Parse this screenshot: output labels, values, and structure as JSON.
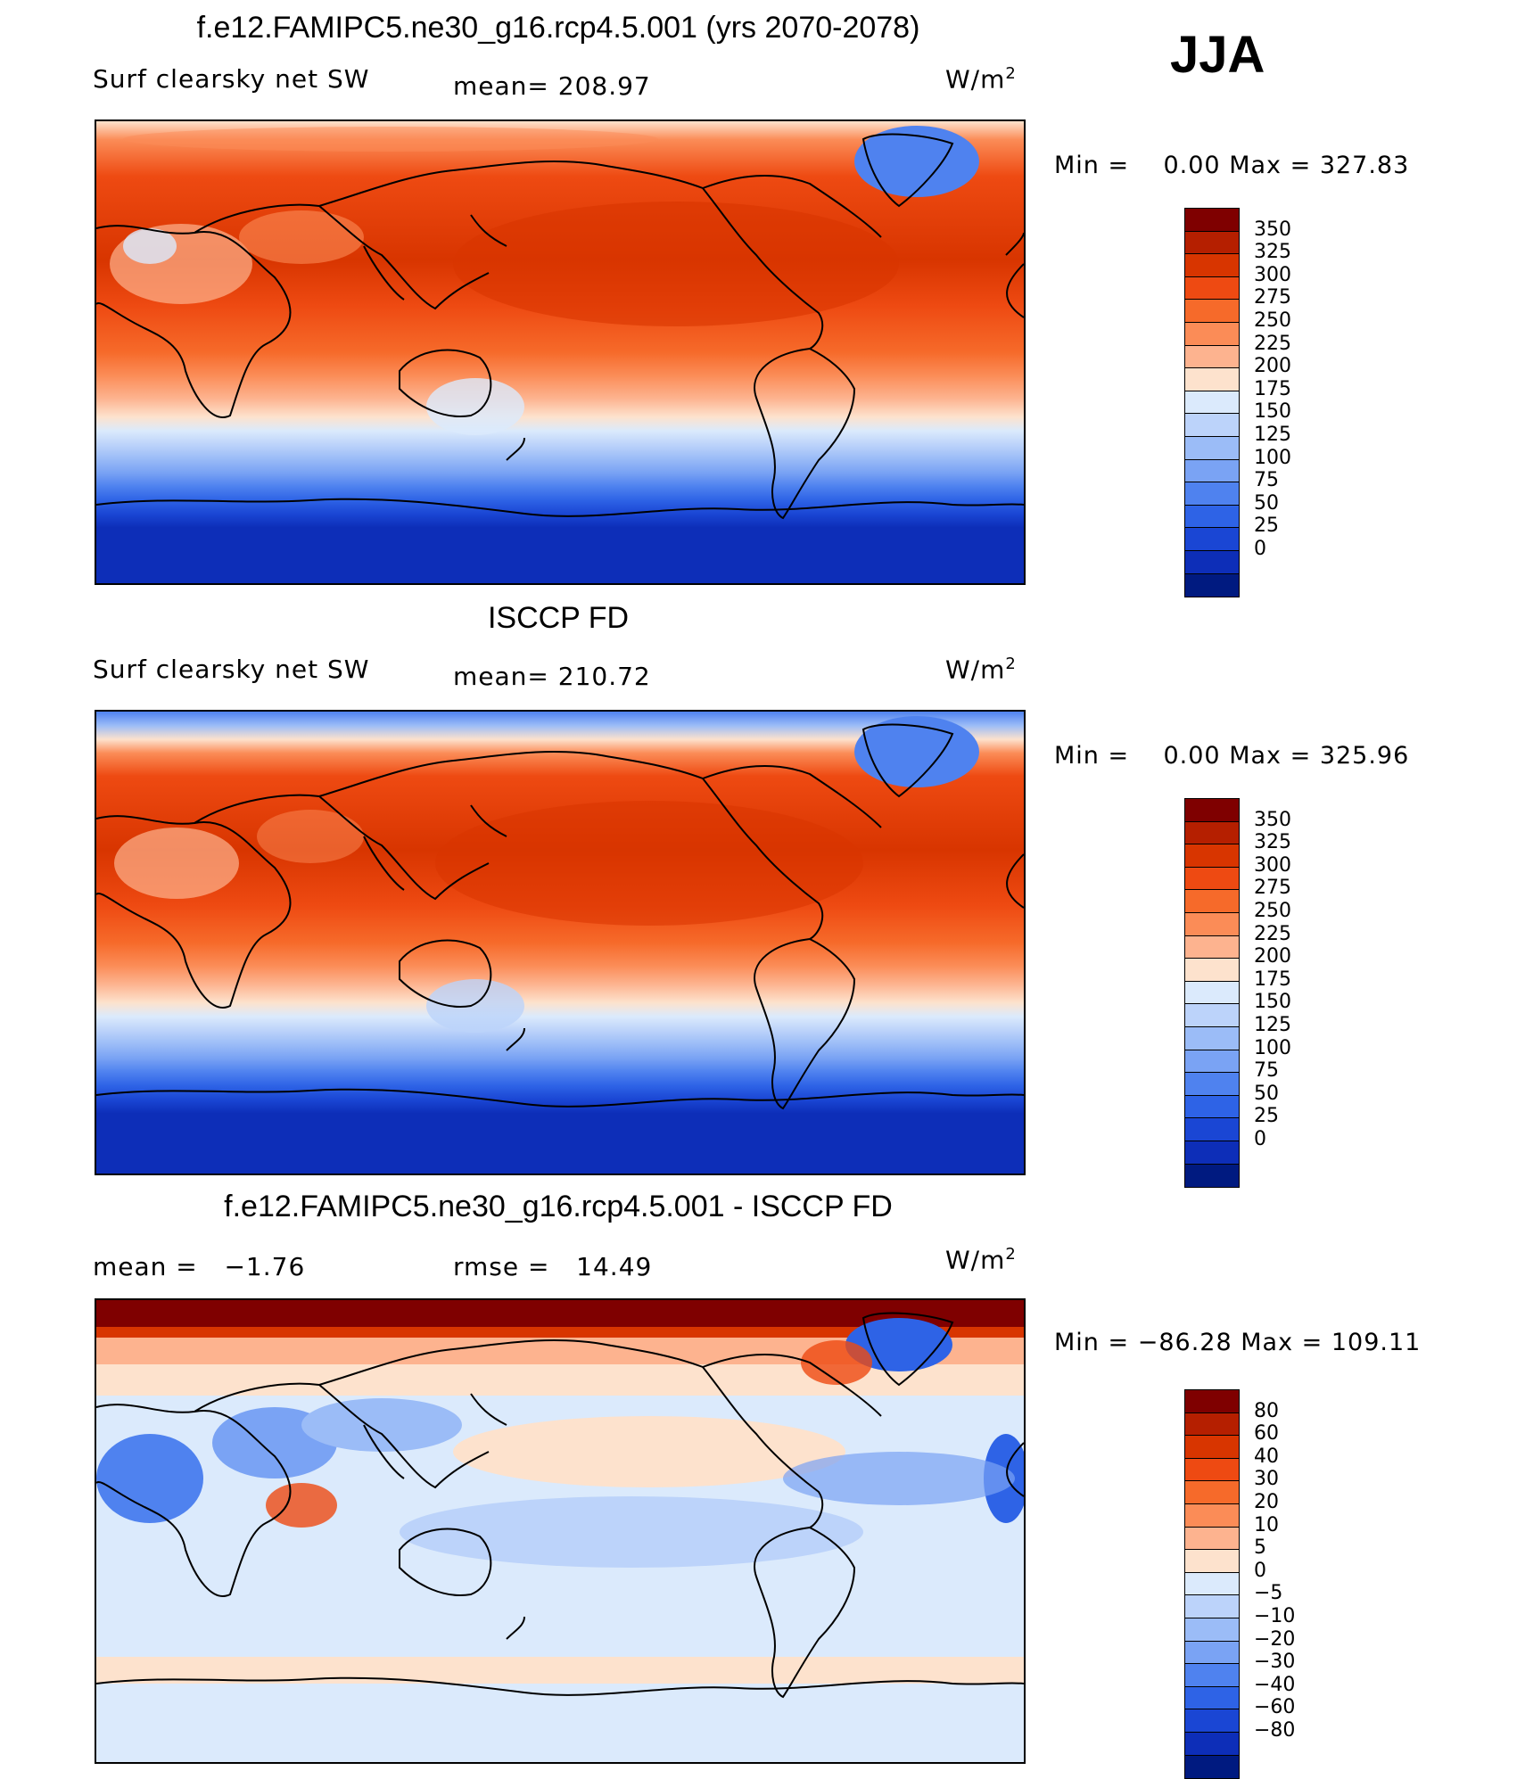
{
  "season": "JJA",
  "panels": [
    {
      "title": "f.e12.FAMIPC5.ne30_g16.rcp4.5.001 (yrs 2070-2078)",
      "variable": "Surf clearsky net SW",
      "stat1": "mean= 208.97",
      "stat2": "",
      "units": "W/m",
      "units_sup": "2",
      "minmax": {
        "min_label": "Min =",
        "min": "0.00",
        "max_label": "Max =",
        "max": "327.83"
      },
      "colorbar": {
        "labels": [
          "350",
          "325",
          "300",
          "275",
          "250",
          "225",
          "200",
          "175",
          "150",
          "125",
          "100",
          "75",
          "50",
          "25",
          "0"
        ],
        "colors": [
          "#7f0000",
          "#b51f00",
          "#d83500",
          "#ee4a12",
          "#f66a2a",
          "#fb8c57",
          "#fdb38f",
          "#fde2cd",
          "#dbeafc",
          "#bcd3fa",
          "#9bbcf7",
          "#7aa3f4",
          "#4f82ef",
          "#2e63e6",
          "#1a46d4",
          "#0d2eb8",
          "#001a80"
        ]
      }
    },
    {
      "title": "ISCCP FD",
      "variable": "Surf clearsky net SW",
      "stat1": "mean= 210.72",
      "stat2": "",
      "units": "W/m",
      "units_sup": "2",
      "minmax": {
        "min_label": "Min =",
        "min": "0.00",
        "max_label": "Max =",
        "max": "325.96"
      },
      "colorbar": {
        "labels": [
          "350",
          "325",
          "300",
          "275",
          "250",
          "225",
          "200",
          "175",
          "150",
          "125",
          "100",
          "75",
          "50",
          "25",
          "0"
        ],
        "colors": [
          "#7f0000",
          "#b51f00",
          "#d83500",
          "#ee4a12",
          "#f66a2a",
          "#fb8c57",
          "#fdb38f",
          "#fde2cd",
          "#dbeafc",
          "#bcd3fa",
          "#9bbcf7",
          "#7aa3f4",
          "#4f82ef",
          "#2e63e6",
          "#1a46d4",
          "#0d2eb8",
          "#001a80"
        ]
      }
    },
    {
      "title": "f.e12.FAMIPC5.ne30_g16.rcp4.5.001 - ISCCP FD",
      "variable": "mean =   −1.76",
      "stat1": "rmse =   14.49",
      "stat2": "",
      "units": "W/m",
      "units_sup": "2",
      "minmax": {
        "min_label": "Min =",
        "min": "−86.28",
        "max_label": "Max =",
        "max": "109.11"
      },
      "colorbar": {
        "labels": [
          "80",
          "60",
          "40",
          "30",
          "20",
          "10",
          "5",
          "0",
          "−5",
          "−10",
          "−20",
          "−30",
          "−40",
          "−60",
          "−80"
        ],
        "colors": [
          "#7f0000",
          "#b51f00",
          "#d83500",
          "#ee4a12",
          "#f66a2a",
          "#fb8c57",
          "#fdb38f",
          "#fde2cd",
          "#dbeafc",
          "#bcd3fa",
          "#9bbcf7",
          "#7aa3f4",
          "#4f82ef",
          "#2e63e6",
          "#1a46d4",
          "#0d2eb8",
          "#001a80"
        ]
      }
    }
  ]
}
